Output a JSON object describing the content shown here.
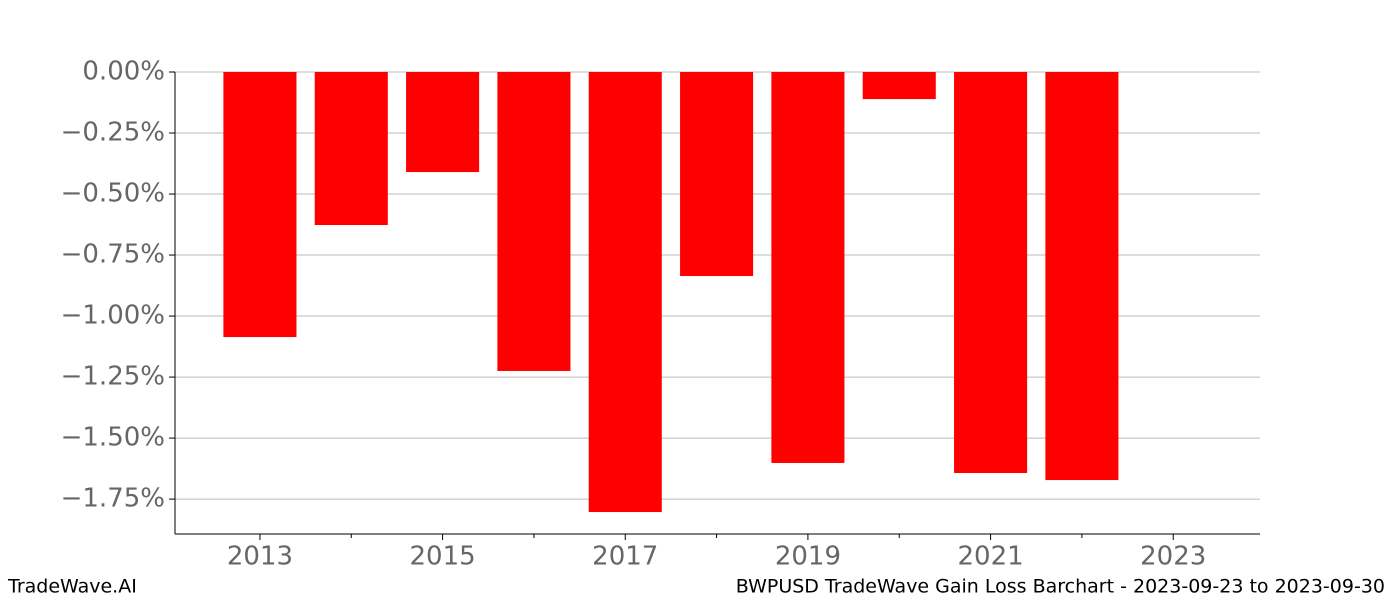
{
  "chart_data": {
    "type": "bar",
    "x": [
      2013,
      2014,
      2015,
      2016,
      2017,
      2018,
      2019,
      2020,
      2021,
      2022
    ],
    "values": [
      -1.086,
      -0.627,
      -0.41,
      -1.225,
      -1.803,
      -0.836,
      -1.602,
      -0.111,
      -1.643,
      -1.672
    ],
    "color": "#ff0000",
    "xlim": [
      2012.07,
      2023.95
    ],
    "xticks": [
      2013,
      2015,
      2017,
      2019,
      2021,
      2023
    ],
    "xminorticks": [
      2014,
      2016,
      2018,
      2020,
      2022
    ],
    "ylim": [
      -1.893,
      0
    ],
    "yticks": [
      {
        "value": 0,
        "label": "0.00%"
      },
      {
        "value": -0.25,
        "label": "−0.25%"
      },
      {
        "value": -0.5,
        "label": "−0.50%"
      },
      {
        "value": -0.75,
        "label": "−0.75%"
      },
      {
        "value": -1,
        "label": "−1.00%"
      },
      {
        "value": -1.25,
        "label": "−1.25%"
      },
      {
        "value": -1.5,
        "label": "−1.50%"
      },
      {
        "value": -1.75,
        "label": "−1.75%"
      }
    ],
    "grid": true,
    "footer_left": "TradeWave.AI",
    "footer_right": "BWPUSD TradeWave Gain Loss Barchart - 2023-09-23 to 2023-09-30"
  }
}
